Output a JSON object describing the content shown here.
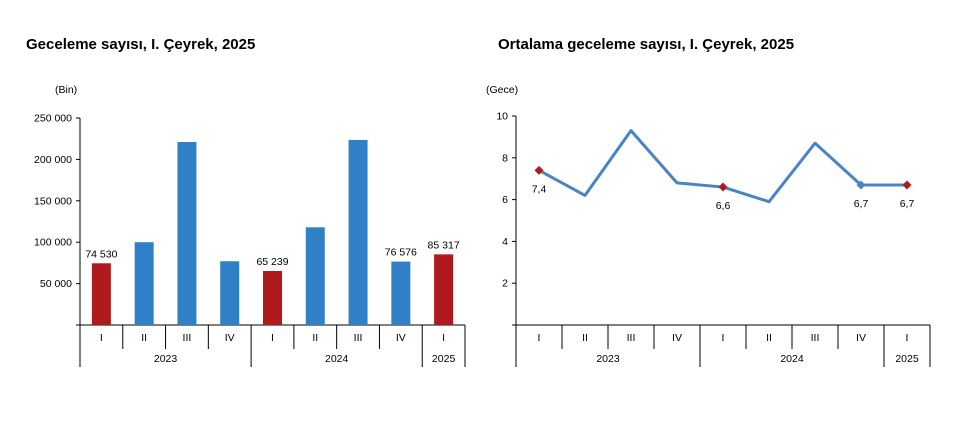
{
  "charts": {
    "left": {
      "title": "Geceleme sayısı, I. Çeyrek, 2025",
      "unit": "(Bin)"
    },
    "right": {
      "title": "Ortalama geceleme sayısı, I. Çeyrek, 2025",
      "unit": "(Gece)"
    }
  },
  "chart_data": [
    {
      "type": "bar",
      "title": "Geceleme sayısı, I. Çeyrek, 2025",
      "ylabel": "(Bin)",
      "ylim": [
        0,
        250000
      ],
      "yticks": [
        0,
        50000,
        100000,
        150000,
        200000,
        250000
      ],
      "ytick_labels": [
        "",
        "50 000",
        "100 000",
        "150 000",
        "200 000",
        "250 000"
      ],
      "categories": [
        "I",
        "II",
        "III",
        "IV",
        "I",
        "II",
        "III",
        "IV",
        "I"
      ],
      "groups": [
        {
          "label": "2023",
          "count": 4
        },
        {
          "label": "2024",
          "count": 4
        },
        {
          "label": "2025",
          "count": 1
        }
      ],
      "values": [
        74530,
        100000,
        221000,
        77000,
        65239,
        118000,
        223500,
        76576,
        85317
      ],
      "highlight": [
        true,
        false,
        false,
        false,
        true,
        false,
        false,
        false,
        true
      ],
      "data_labels": [
        "74 530",
        "",
        "",
        "",
        "65 239",
        "",
        "",
        "76 576",
        "85 317"
      ],
      "colors": {
        "default": "#2f80c6",
        "highlight": "#b01a1c"
      }
    },
    {
      "type": "line",
      "title": "Ortalama geceleme sayısı, I. Çeyrek, 2025",
      "ylabel": "(Gece)",
      "ylim": [
        0,
        10
      ],
      "yticks": [
        0,
        2,
        4,
        6,
        8,
        10
      ],
      "ytick_labels": [
        "",
        "2",
        "4",
        "6",
        "8",
        "10"
      ],
      "categories": [
        "I",
        "II",
        "III",
        "IV",
        "I",
        "II",
        "III",
        "IV",
        "I"
      ],
      "groups": [
        {
          "label": "2023",
          "count": 4
        },
        {
          "label": "2024",
          "count": 4
        },
        {
          "label": "2025",
          "count": 1
        }
      ],
      "values": [
        7.4,
        6.2,
        9.3,
        6.8,
        6.6,
        5.9,
        8.7,
        6.7,
        6.7
      ],
      "markers": [
        "red",
        "none",
        "none",
        "none",
        "red",
        "none",
        "none",
        "blue",
        "red"
      ],
      "data_labels": [
        "7,4",
        "",
        "",
        "",
        "6,6",
        "",
        "",
        "6,7",
        "6,7"
      ],
      "colors": {
        "line": "#4a84c4",
        "marker_red": "#b01a1c",
        "marker_blue": "#4a84c4"
      }
    }
  ]
}
